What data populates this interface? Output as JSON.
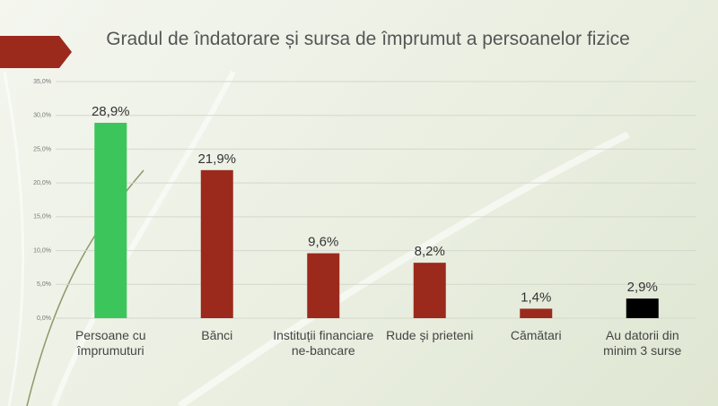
{
  "chart_data": {
    "type": "bar",
    "title": "Gradul de îndatorare și sursa de împrumut a persoanelor fizice",
    "categories": [
      "Persoane cu împrumuturi",
      "Bănci",
      "Instituții financiare ne-bancare",
      "Rude și prieteni",
      "Cămătari",
      "Au datorii din minim 3 surse"
    ],
    "values": [
      28.9,
      21.9,
      9.6,
      8.2,
      1.4,
      2.9
    ],
    "value_labels": [
      "28,9%",
      "21,9%",
      "9,6%",
      "8,2%",
      "1,4%",
      "2,9%"
    ],
    "colors": [
      "#3cc55b",
      "#9b2a1c",
      "#9b2a1c",
      "#9b2a1c",
      "#9b2a1c",
      "#000000"
    ],
    "ylim": [
      0,
      35
    ],
    "yticks": [
      {
        "value": 0,
        "label": "0,0%"
      },
      {
        "value": 5,
        "label": "5,0%"
      },
      {
        "value": 10,
        "label": "10,0%"
      },
      {
        "value": 15,
        "label": "15,0%"
      },
      {
        "value": 20,
        "label": "20,0%"
      },
      {
        "value": 25,
        "label": "25,0%"
      },
      {
        "value": 30,
        "label": "30,0%"
      },
      {
        "value": 35,
        "label": "35,0%"
      }
    ],
    "grid": true
  }
}
